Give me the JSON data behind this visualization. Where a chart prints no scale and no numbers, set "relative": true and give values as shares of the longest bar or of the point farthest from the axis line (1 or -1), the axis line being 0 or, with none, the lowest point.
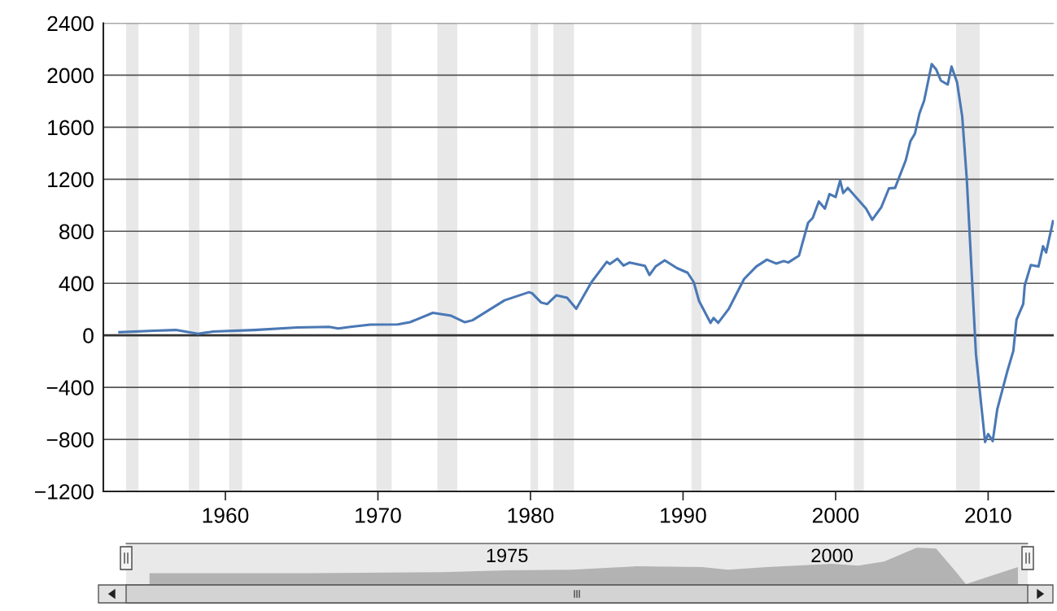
{
  "chart_data": [
    {
      "type": "line",
      "x": [
        1953.06,
        1955.3,
        1956.75,
        1958.2,
        1959.2,
        1961.9,
        1964.7,
        1966.8,
        1967.4,
        1968.2,
        1969.5,
        1971.3,
        1972.1,
        1973.6,
        1974.8,
        1975.7,
        1976.2,
        1978.3,
        1979.9,
        1980.1,
        1980.7,
        1981.1,
        1981.7,
        1982.4,
        1983.0,
        1984.0,
        1985.0,
        1985.2,
        1985.7,
        1986.1,
        1986.5,
        1987.5,
        1987.8,
        1988.2,
        1988.8,
        1989.6,
        1990.3,
        1990.7,
        1991.05,
        1991.8,
        1992.0,
        1992.3,
        1993.0,
        1994.0,
        1994.8,
        1995.5,
        1996.1,
        1996.6,
        1996.9,
        1997.6,
        1998.2,
        1998.5,
        1998.9,
        1999.3,
        1999.6,
        2000.0,
        2000.3,
        2000.5,
        2000.8,
        2002.0,
        2002.4,
        2003.0,
        2003.5,
        2003.9,
        2004.6,
        2004.9,
        2005.2,
        2005.5,
        2005.8,
        2006.3,
        2006.6,
        2006.9,
        2007.35,
        2007.6,
        2007.96,
        2008.3,
        2008.6,
        2008.9,
        2009.2,
        2009.8,
        2010.0,
        2010.3,
        2010.6,
        2011.25,
        2011.65,
        2011.86,
        2012.3,
        2012.4,
        2012.8,
        2013.3,
        2013.6,
        2013.8,
        2014.25
      ],
      "series": [
        {
          "color": "#4a78b5",
          "values": [
            24,
            36,
            41,
            12,
            29,
            41,
            60,
            65,
            53,
            65,
            82,
            84,
            101,
            173,
            151,
            101,
            116,
            269,
            332,
            324,
            252,
            241,
            308,
            289,
            204,
            409,
            565,
            548,
            589,
            536,
            560,
            534,
            464,
            529,
            577,
            517,
            481,
            409,
            264,
            96,
            133,
            96,
            204,
            433,
            529,
            582,
            552,
            571,
            560,
            613,
            866,
            902,
            1029,
            974,
            1086,
            1063,
            1190,
            1094,
            1134,
            974,
            889,
            986,
            1130,
            1134,
            1346,
            1491,
            1551,
            1707,
            1803,
            2086,
            2043,
            1959,
            1928,
            2067,
            1947,
            1683,
            1202,
            529,
            -144,
            -820,
            -759,
            -813,
            -567,
            -279,
            -120,
            121,
            241,
            384,
            541,
            529,
            685,
            637,
            877
          ]
        }
      ],
      "xlim": [
        1952,
        2014.3
      ],
      "xticks": [
        1960,
        1970,
        1980,
        1990,
        2000,
        2010
      ],
      "ylim": [
        -1200,
        2400
      ],
      "yticks": [
        {
          "value": -1200,
          "label": "−1200"
        },
        {
          "value": -800,
          "label": "−800"
        },
        {
          "value": -400,
          "label": "−400"
        },
        0,
        400,
        800,
        1200,
        1600,
        2000,
        2400
      ],
      "grid": "y",
      "line_style": "solid",
      "marker": "none",
      "ref_lines": [
        {
          "axis": "y",
          "value": 0,
          "color": "#333333"
        }
      ],
      "bands": [
        {
          "axis": "x",
          "from": 1953.5,
          "to": 1954.3,
          "color": "#e8e8e8"
        },
        {
          "axis": "x",
          "from": 1957.6,
          "to": 1958.3,
          "color": "#e8e8e8"
        },
        {
          "axis": "x",
          "from": 1960.25,
          "to": 1961.1,
          "color": "#e8e8e8"
        },
        {
          "axis": "x",
          "from": 1969.9,
          "to": 1970.9,
          "color": "#e8e8e8"
        },
        {
          "axis": "x",
          "from": 1973.9,
          "to": 1975.2,
          "color": "#e8e8e8"
        },
        {
          "axis": "x",
          "from": 1980.0,
          "to": 1980.5,
          "color": "#e8e8e8"
        },
        {
          "axis": "x",
          "from": 1981.5,
          "to": 1982.85,
          "color": "#e8e8e8"
        },
        {
          "axis": "x",
          "from": 1990.55,
          "to": 1991.2,
          "color": "#e8e8e8"
        },
        {
          "axis": "x",
          "from": 2001.2,
          "to": 2001.85,
          "color": "#e8e8e8"
        },
        {
          "axis": "x",
          "from": 2007.9,
          "to": 2009.45,
          "color": "#e8e8e8"
        }
      ]
    },
    {
      "type": "area",
      "relative": true,
      "x": [
        1947.5,
        1960,
        1970,
        1975,
        1980,
        1985,
        1990,
        1992,
        1995,
        2000,
        2002,
        2004,
        2006.5,
        2008,
        2009.5,
        2010.3,
        2012,
        2014.3
      ],
      "series": [
        {
          "color": "#b3b3b3",
          "values": [
            0.3,
            0.3,
            0.33,
            0.38,
            0.4,
            0.49,
            0.47,
            0.4,
            0.47,
            0.56,
            0.51,
            0.62,
            1.0,
            0.98,
            0.35,
            0,
            0.2,
            0.47
          ]
        }
      ],
      "xlim": [
        1945.7,
        2015.05
      ],
      "xticks": [
        1975,
        2000
      ],
      "tick_labels": "x"
    }
  ]
}
